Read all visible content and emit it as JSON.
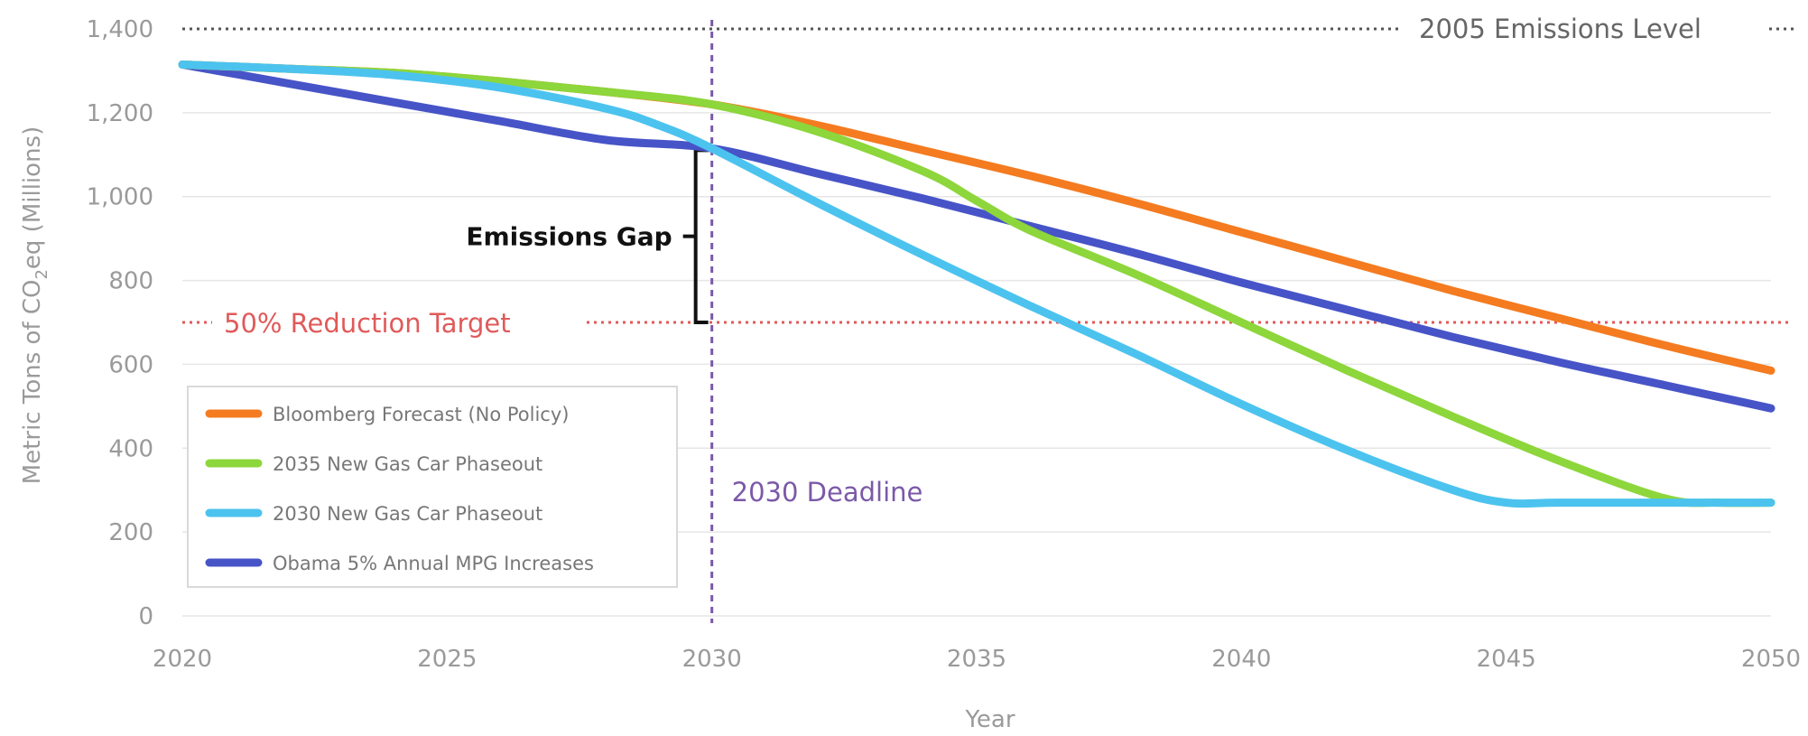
{
  "chart_data": {
    "type": "line",
    "xlabel": "Year",
    "ylabel_parts": [
      "Metric Tons of CO",
      "2",
      "eq (Millions)"
    ],
    "xlim": [
      2020,
      2050
    ],
    "ylim": [
      0,
      1400
    ],
    "x_ticks": [
      2020,
      2025,
      2030,
      2035,
      2040,
      2045,
      2050
    ],
    "x_tick_labels": [
      "2020",
      "2025",
      "2030",
      "2035",
      "2040",
      "2045",
      "2050"
    ],
    "y_ticks": [
      0,
      200,
      400,
      600,
      800,
      1000,
      1200,
      1400
    ],
    "y_tick_labels": [
      "0",
      "200",
      "400",
      "600",
      "800",
      "1,000",
      "1,200",
      "1,400"
    ],
    "grid": "horizontal",
    "legend_position": "bottom-left",
    "series": [
      {
        "name": "Bloomberg Forecast (No Policy)",
        "color": "#f47b20",
        "points": [
          [
            2020,
            1315
          ],
          [
            2022,
            1305
          ],
          [
            2024,
            1295
          ],
          [
            2026,
            1275
          ],
          [
            2028,
            1250
          ],
          [
            2030,
            1220
          ],
          [
            2032,
            1170
          ],
          [
            2034,
            1110
          ],
          [
            2036,
            1050
          ],
          [
            2038,
            985
          ],
          [
            2040,
            915
          ],
          [
            2042,
            845
          ],
          [
            2044,
            775
          ],
          [
            2046,
            710
          ],
          [
            2048,
            645
          ],
          [
            2050,
            585
          ]
        ]
      },
      {
        "name": "2035 New Gas Car Phaseout",
        "color": "#8dd63b",
        "points": [
          [
            2020,
            1315
          ],
          [
            2022,
            1305
          ],
          [
            2024,
            1295
          ],
          [
            2026,
            1275
          ],
          [
            2028,
            1250
          ],
          [
            2030,
            1220
          ],
          [
            2032,
            1155
          ],
          [
            2034,
            1060
          ],
          [
            2035,
            990
          ],
          [
            2036,
            920
          ],
          [
            2038,
            815
          ],
          [
            2040,
            700
          ],
          [
            2042,
            585
          ],
          [
            2044,
            475
          ],
          [
            2046,
            370
          ],
          [
            2048,
            280
          ],
          [
            2049,
            270
          ],
          [
            2050,
            270
          ]
        ]
      },
      {
        "name": "2030 New Gas Car Phaseout",
        "color": "#4cc3ee",
        "points": [
          [
            2020,
            1315
          ],
          [
            2022,
            1305
          ],
          [
            2024,
            1290
          ],
          [
            2026,
            1260
          ],
          [
            2028,
            1210
          ],
          [
            2029,
            1170
          ],
          [
            2030,
            1115
          ],
          [
            2032,
            985
          ],
          [
            2034,
            860
          ],
          [
            2036,
            740
          ],
          [
            2038,
            625
          ],
          [
            2040,
            505
          ],
          [
            2042,
            395
          ],
          [
            2044,
            300
          ],
          [
            2045,
            270
          ],
          [
            2046,
            270
          ],
          [
            2048,
            270
          ],
          [
            2050,
            270
          ]
        ]
      },
      {
        "name": "Obama 5% Annual MPG Increases",
        "color": "#4754c7",
        "points": [
          [
            2020,
            1315
          ],
          [
            2022,
            1270
          ],
          [
            2024,
            1225
          ],
          [
            2026,
            1180
          ],
          [
            2028,
            1135
          ],
          [
            2030,
            1115
          ],
          [
            2032,
            1055
          ],
          [
            2034,
            995
          ],
          [
            2036,
            930
          ],
          [
            2038,
            865
          ],
          [
            2040,
            795
          ],
          [
            2042,
            730
          ],
          [
            2044,
            665
          ],
          [
            2046,
            605
          ],
          [
            2048,
            550
          ],
          [
            2050,
            495
          ]
        ]
      }
    ],
    "reference_lines": [
      {
        "label": "2005 Emissions Level",
        "y": 1400,
        "color": "#555555"
      },
      {
        "label": "50% Reduction Target",
        "y": 700,
        "color": "#e05a5a"
      }
    ],
    "vertical_line": {
      "label": "2030 Deadline",
      "x": 2030,
      "color": "#7b59a8"
    },
    "annotation": {
      "label": "Emissions Gap",
      "x": 2030,
      "y_from": 700,
      "y_to": 1115,
      "color": "#111111"
    }
  }
}
